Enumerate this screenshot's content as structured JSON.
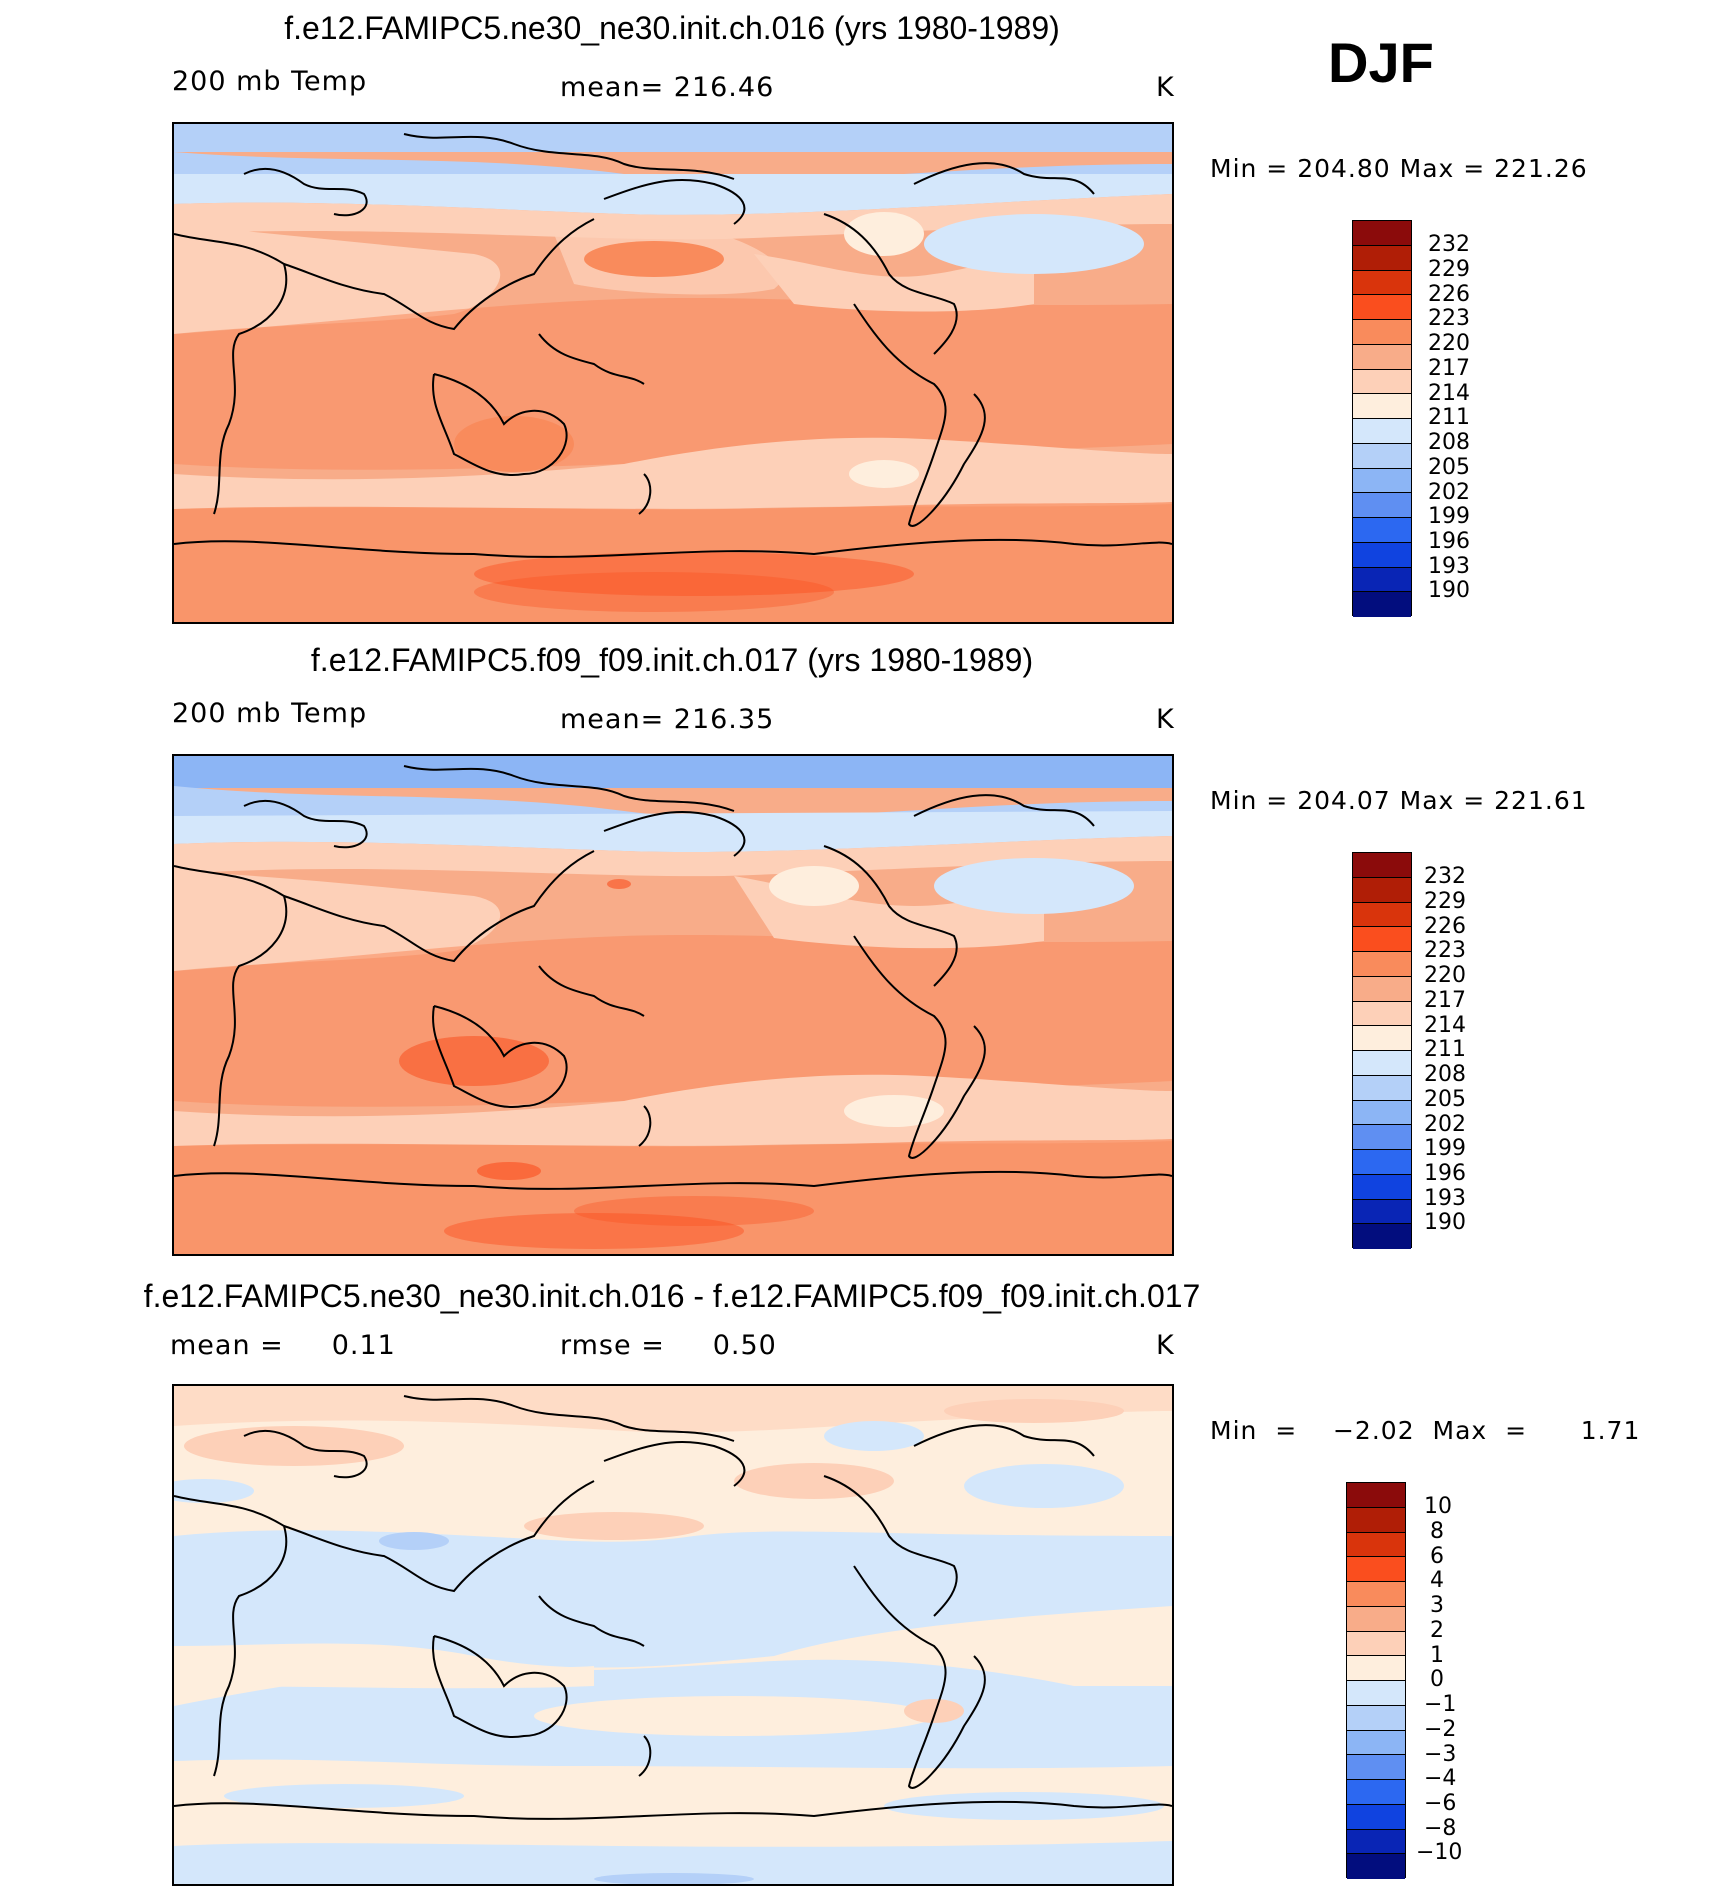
{
  "season": "DJF",
  "panels": [
    {
      "title": "f.e12.FAMIPC5.ne30_ne30.init.ch.016 (yrs 1980-1989)",
      "left_label": "200 mb Temp",
      "center_label": "mean= 216.46",
      "units": "K",
      "minmax": "Min  =  204.80  Max  =  221.26",
      "colorbar": {
        "labels": [
          "232",
          "229",
          "226",
          "223",
          "220",
          "217",
          "214",
          "211",
          "208",
          "205",
          "202",
          "199",
          "196",
          "193",
          "190"
        ]
      }
    },
    {
      "title": "f.e12.FAMIPC5.f09_f09.init.ch.017 (yrs 1980-1989)",
      "left_label": "200 mb Temp",
      "center_label": "mean= 216.35",
      "units": "K",
      "minmax": "Min  =  204.07  Max  =  221.61",
      "colorbar": {
        "labels": [
          "232",
          "229",
          "226",
          "223",
          "220",
          "217",
          "214",
          "211",
          "208",
          "205",
          "202",
          "199",
          "196",
          "193",
          "190"
        ]
      }
    },
    {
      "title": "f.e12.FAMIPC5.ne30_ne30.init.ch.016 - f.e12.FAMIPC5.f09_f09.init.ch.017",
      "left_label": "mean =     0.11",
      "center_label": "rmse =     0.50",
      "units": "K",
      "minmax": "Min  =    −2.02  Max  =      1.71",
      "colorbar": {
        "labels": [
          "10",
          "8",
          "6",
          "4",
          "3",
          "2",
          "1",
          "0",
          "−1",
          "−2",
          "−3",
          "−4",
          "−6",
          "−8",
          "−10"
        ]
      }
    }
  ],
  "colors": {
    "abs_scale": [
      "#8b0b0b",
      "#b01e06",
      "#d9340c",
      "#fa4e1e",
      "#f98b5c",
      "#f8ac89",
      "#fdd0b8",
      "#feeedd",
      "#d4e7fb",
      "#b4d0f8",
      "#8cb5f5",
      "#5f8ff2",
      "#2c68f1",
      "#1043e0",
      "#0925b5",
      "#020d7e"
    ],
    "diff_scale": [
      "#8b0b0b",
      "#b01e06",
      "#d9340c",
      "#fa4e1e",
      "#f98b5c",
      "#f8ac89",
      "#fdd0b8",
      "#feeedd",
      "#d4e7fb",
      "#b4d0f8",
      "#8cb5f5",
      "#5f8ff2",
      "#2c68f1",
      "#1043e0",
      "#0925b5",
      "#020d7e"
    ]
  }
}
